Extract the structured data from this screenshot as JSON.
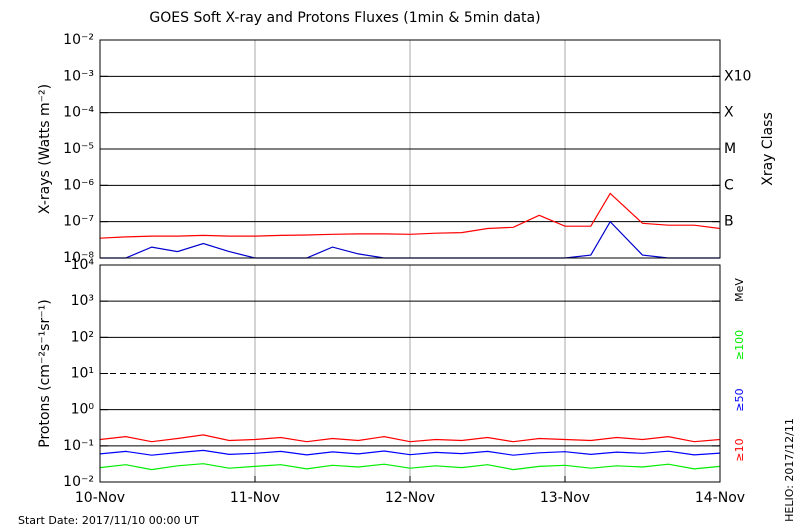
{
  "title": "GOES Soft X-ray and Protons Fluxes   (1min & 5min data)",
  "start_date": "Start Date: 2017/11/10 00:00 UT",
  "helio": "HELIO: 2017/12/11",
  "chart_data": [
    {
      "type": "line",
      "log": true,
      "ylabel": "X-rays (Watts m⁻²)",
      "xlim": [
        0,
        96
      ],
      "ylim": [
        1e-08,
        0.01
      ],
      "yticks": [
        {
          "value": 1e-08,
          "label": "10⁻⁸"
        },
        {
          "value": 1e-07,
          "label": "10⁻⁷"
        },
        {
          "value": 1e-06,
          "label": "10⁻⁶"
        },
        {
          "value": 1e-05,
          "label": "10⁻⁵"
        },
        {
          "value": 0.0001,
          "label": "10⁻⁴"
        },
        {
          "value": 0.001,
          "label": "10⁻³"
        },
        {
          "value": 0.01,
          "label": "10⁻²"
        }
      ],
      "right_label": "Xray Class",
      "class_labels": [
        {
          "value": 0.001,
          "label": "X10"
        },
        {
          "value": 0.0001,
          "label": "X"
        },
        {
          "value": 1e-05,
          "label": "M"
        },
        {
          "value": 1e-06,
          "label": "C"
        },
        {
          "value": 1e-07,
          "label": "B"
        }
      ],
      "x": [
        0,
        4,
        8,
        12,
        16,
        20,
        24,
        28,
        32,
        36,
        40,
        44,
        48,
        52,
        56,
        60,
        64,
        68,
        72,
        76,
        79,
        84,
        88,
        92,
        96
      ],
      "series": [
        {
          "color": "#ff0000",
          "values": [
            3.5e-08,
            3.8e-08,
            4e-08,
            4e-08,
            4.2e-08,
            4e-08,
            4e-08,
            4.2e-08,
            4.3e-08,
            4.5e-08,
            4.6e-08,
            4.6e-08,
            4.5e-08,
            4.8e-08,
            5e-08,
            6.5e-08,
            7e-08,
            1.5e-07,
            7.5e-08,
            7.5e-08,
            6e-07,
            9e-08,
            8e-08,
            8e-08,
            6.5e-08
          ]
        },
        {
          "color": "#0000cc",
          "values": [
            1e-08,
            1e-08,
            2e-08,
            1.5e-08,
            2.5e-08,
            1.5e-08,
            1e-08,
            1e-08,
            1e-08,
            2e-08,
            1.3e-08,
            1e-08,
            1e-08,
            1e-08,
            1e-08,
            1e-08,
            1e-08,
            1e-08,
            1e-08,
            1.2e-08,
            1e-07,
            1.2e-08,
            1e-08,
            1e-08,
            1e-08
          ]
        }
      ]
    },
    {
      "type": "line",
      "log": true,
      "ylabel": "Protons (cm⁻²s⁻¹sr⁻¹)",
      "xlim": [
        0,
        96
      ],
      "ylim": [
        0.01,
        10000
      ],
      "yticks": [
        {
          "value": 0.01,
          "label": "10⁻²"
        },
        {
          "value": 0.1,
          "label": "10⁻¹"
        },
        {
          "value": 1,
          "label": "10⁰"
        },
        {
          "value": 10,
          "label": "10¹"
        },
        {
          "value": 100,
          "label": "10²"
        },
        {
          "value": 1000,
          "label": "10³"
        },
        {
          "value": 10000,
          "label": "10⁴"
        }
      ],
      "dashed_grid_at": 10,
      "right_label": "MeV",
      "xticks": [
        {
          "value": 0,
          "label": "10-Nov"
        },
        {
          "value": 24,
          "label": "11-Nov"
        },
        {
          "value": 48,
          "label": "12-Nov"
        },
        {
          "value": 72,
          "label": "13-Nov"
        },
        {
          "value": 96,
          "label": "14-Nov"
        }
      ],
      "x": [
        0,
        4,
        8,
        12,
        16,
        20,
        24,
        28,
        32,
        36,
        40,
        44,
        48,
        52,
        56,
        60,
        64,
        68,
        72,
        76,
        80,
        84,
        88,
        92,
        96
      ],
      "series": [
        {
          "name": "≥100",
          "color": "#00ee00",
          "values": [
            0.025,
            0.03,
            0.022,
            0.028,
            0.032,
            0.024,
            0.027,
            0.03,
            0.023,
            0.029,
            0.026,
            0.031,
            0.024,
            0.028,
            0.025,
            0.03,
            0.022,
            0.027,
            0.029,
            0.024,
            0.028,
            0.026,
            0.031,
            0.023,
            0.027
          ]
        },
        {
          "name": "≥50",
          "color": "#0000ff",
          "values": [
            0.06,
            0.07,
            0.055,
            0.065,
            0.075,
            0.058,
            0.062,
            0.07,
            0.056,
            0.068,
            0.06,
            0.072,
            0.057,
            0.066,
            0.061,
            0.07,
            0.055,
            0.064,
            0.069,
            0.058,
            0.067,
            0.062,
            0.071,
            0.056,
            0.063
          ]
        },
        {
          "name": "≥10",
          "color": "#ff0000",
          "values": [
            0.15,
            0.18,
            0.13,
            0.16,
            0.2,
            0.14,
            0.15,
            0.17,
            0.13,
            0.16,
            0.14,
            0.18,
            0.13,
            0.15,
            0.14,
            0.17,
            0.13,
            0.16,
            0.15,
            0.14,
            0.17,
            0.15,
            0.18,
            0.13,
            0.15
          ]
        }
      ]
    }
  ]
}
